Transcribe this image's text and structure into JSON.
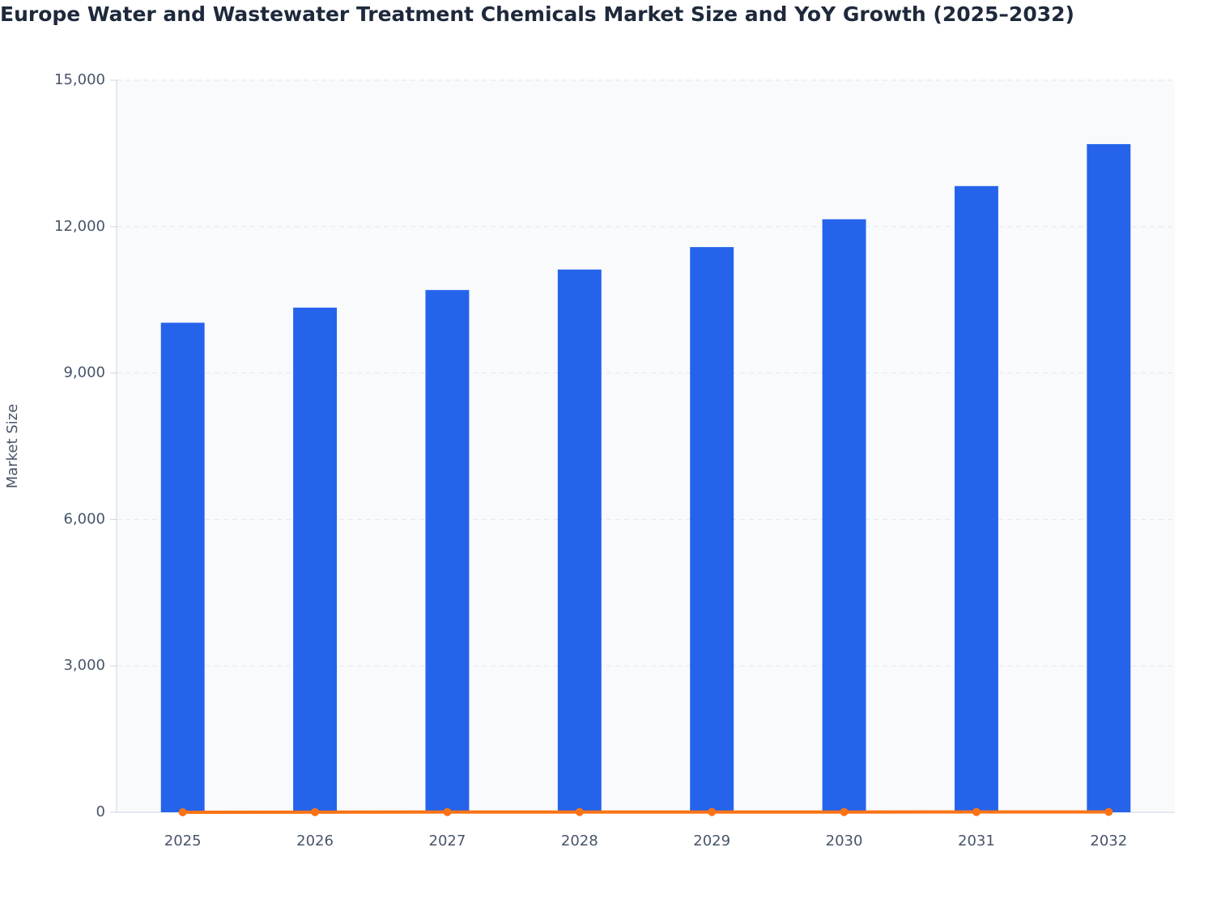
{
  "chart_data": {
    "type": "bar",
    "title": "Europe Water and Wastewater Treatment Chemicals Market Size and YoY Growth (2025–2032)",
    "y_label": "Market Size",
    "categories": [
      "2025",
      "2026",
      "2027",
      "2028",
      "2029",
      "2030",
      "2031",
      "2032"
    ],
    "series": [
      {
        "type": "bar",
        "color": "#2563eb",
        "values": [
          10030,
          10340,
          10700,
          11120,
          11580,
          12150,
          12830,
          13690
        ]
      },
      {
        "type": "line",
        "color": "#f97316",
        "values": [
          0,
          3.1,
          3.5,
          3.9,
          4.1,
          4.9,
          5.6,
          6.7
        ]
      }
    ],
    "ylim": [
      0,
      15000
    ],
    "yticks": [
      0,
      {
        "value": 3000,
        "label": "3,000"
      },
      {
        "value": 6000,
        "label": "6,000"
      },
      {
        "value": 9000,
        "label": "9,000"
      },
      {
        "value": 12000,
        "label": "12,000"
      },
      {
        "value": 15000,
        "label": "15,000"
      }
    ],
    "grid": true
  }
}
